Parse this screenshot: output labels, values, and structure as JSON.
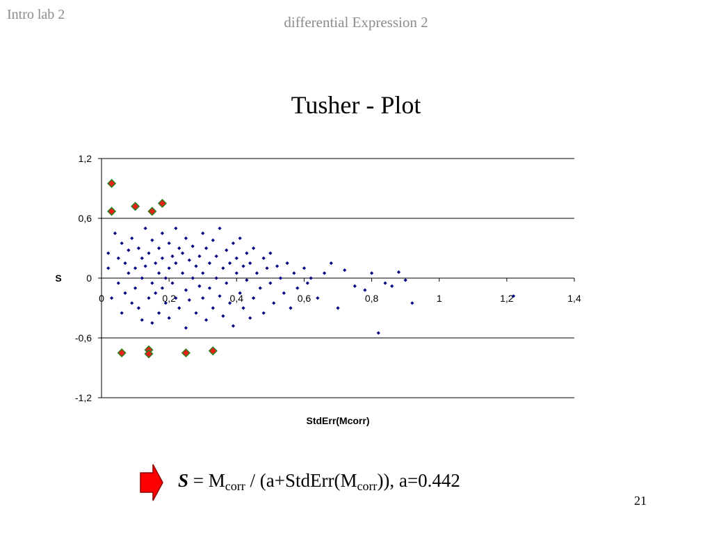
{
  "header": {
    "left": "Intro lab 2",
    "center": "differential Expression 2"
  },
  "slide": {
    "title": "Tusher - Plot",
    "page_number": "21"
  },
  "formula": {
    "symbol": "S",
    "eq": " = M",
    "sub1": "corr",
    "mid": " / (a+StdErr(M",
    "sub2": "corr",
    "end": ")), a=0.442"
  },
  "colors": {
    "point": "#000080",
    "highlight_fill": "#e8201a",
    "highlight_stroke": "#2e7d1e",
    "grid": "#000000",
    "arrow_fill": "#ff0000",
    "arrow_stroke": "#8b0000"
  },
  "icons": {
    "arrow": "right-arrow-icon"
  },
  "chart_data": {
    "type": "scatter",
    "xlabel": "StdErr(Mcorr)",
    "ylabel": "S",
    "xlim": [
      0,
      1.4
    ],
    "ylim": [
      -1.2,
      1.2
    ],
    "x_ticks": [
      "0",
      "0,2",
      "0,4",
      "0,6",
      "0,8",
      "1",
      "1,2",
      "1,4"
    ],
    "y_ticks": [
      "1,2",
      "0,6",
      "0",
      "-0,6",
      "-1,2"
    ],
    "x_tick_values": [
      0,
      0.2,
      0.4,
      0.6,
      0.8,
      1.0,
      1.2,
      1.4
    ],
    "y_tick_values": [
      1.2,
      0.6,
      0,
      -0.6,
      -1.2
    ],
    "grid": "horizontal",
    "legend": "none",
    "series": [
      {
        "marker": "small-diamond",
        "points": [
          [
            0.02,
            0.25
          ],
          [
            0.02,
            0.1
          ],
          [
            0.03,
            -0.2
          ],
          [
            0.04,
            0.45
          ],
          [
            0.05,
            0.2
          ],
          [
            0.05,
            -0.05
          ],
          [
            0.06,
            0.35
          ],
          [
            0.06,
            -0.35
          ],
          [
            0.07,
            0.15
          ],
          [
            0.07,
            -0.15
          ],
          [
            0.08,
            0.05
          ],
          [
            0.08,
            0.28
          ],
          [
            0.09,
            -0.25
          ],
          [
            0.09,
            0.4
          ],
          [
            0.1,
            0.1
          ],
          [
            0.1,
            -0.1
          ],
          [
            0.11,
            0.3
          ],
          [
            0.11,
            -0.3
          ],
          [
            0.12,
            0.2
          ],
          [
            0.12,
            0.0
          ],
          [
            0.12,
            -0.42
          ],
          [
            0.13,
            0.5
          ],
          [
            0.13,
            0.12
          ],
          [
            0.14,
            -0.2
          ],
          [
            0.14,
            0.25
          ],
          [
            0.15,
            -0.05
          ],
          [
            0.15,
            0.38
          ],
          [
            0.15,
            -0.45
          ],
          [
            0.16,
            0.15
          ],
          [
            0.16,
            -0.15
          ],
          [
            0.17,
            0.05
          ],
          [
            0.17,
            0.3
          ],
          [
            0.17,
            -0.35
          ],
          [
            0.18,
            0.2
          ],
          [
            0.18,
            -0.1
          ],
          [
            0.18,
            0.45
          ],
          [
            0.19,
            0.0
          ],
          [
            0.19,
            -0.25
          ],
          [
            0.2,
            0.1
          ],
          [
            0.2,
            0.35
          ],
          [
            0.2,
            -0.4
          ],
          [
            0.21,
            0.22
          ],
          [
            0.21,
            -0.05
          ],
          [
            0.22,
            0.15
          ],
          [
            0.22,
            -0.2
          ],
          [
            0.22,
            0.5
          ],
          [
            0.23,
            0.3
          ],
          [
            0.23,
            -0.3
          ],
          [
            0.24,
            0.05
          ],
          [
            0.24,
            0.25
          ],
          [
            0.25,
            -0.12
          ],
          [
            0.25,
            0.4
          ],
          [
            0.25,
            -0.5
          ],
          [
            0.26,
            0.18
          ],
          [
            0.26,
            -0.22
          ],
          [
            0.27,
            0.0
          ],
          [
            0.27,
            0.32
          ],
          [
            0.28,
            -0.35
          ],
          [
            0.28,
            0.12
          ],
          [
            0.29,
            0.22
          ],
          [
            0.29,
            -0.08
          ],
          [
            0.3,
            0.45
          ],
          [
            0.3,
            -0.2
          ],
          [
            0.3,
            0.05
          ],
          [
            0.31,
            0.3
          ],
          [
            0.31,
            -0.42
          ],
          [
            0.32,
            0.15
          ],
          [
            0.32,
            -0.1
          ],
          [
            0.33,
            0.38
          ],
          [
            0.33,
            -0.3
          ],
          [
            0.34,
            0.0
          ],
          [
            0.34,
            0.22
          ],
          [
            0.35,
            -0.18
          ],
          [
            0.35,
            0.5
          ],
          [
            0.36,
            0.1
          ],
          [
            0.36,
            -0.38
          ],
          [
            0.37,
            0.28
          ],
          [
            0.37,
            -0.05
          ],
          [
            0.38,
            0.15
          ],
          [
            0.38,
            -0.25
          ],
          [
            0.39,
            0.35
          ],
          [
            0.39,
            -0.48
          ],
          [
            0.4,
            0.05
          ],
          [
            0.4,
            0.2
          ],
          [
            0.41,
            -0.15
          ],
          [
            0.41,
            0.4
          ],
          [
            0.42,
            -0.3
          ],
          [
            0.42,
            0.12
          ],
          [
            0.43,
            0.25
          ],
          [
            0.43,
            -0.02
          ],
          [
            0.44,
            -0.4
          ],
          [
            0.44,
            0.15
          ],
          [
            0.45,
            0.3
          ],
          [
            0.45,
            -0.2
          ],
          [
            0.46,
            0.05
          ],
          [
            0.47,
            -0.1
          ],
          [
            0.48,
            0.2
          ],
          [
            0.48,
            -0.35
          ],
          [
            0.49,
            0.1
          ],
          [
            0.5,
            -0.05
          ],
          [
            0.5,
            0.25
          ],
          [
            0.51,
            -0.25
          ],
          [
            0.52,
            0.12
          ],
          [
            0.53,
            0.0
          ],
          [
            0.54,
            -0.15
          ],
          [
            0.55,
            0.15
          ],
          [
            0.56,
            -0.3
          ],
          [
            0.57,
            0.05
          ],
          [
            0.58,
            -0.1
          ],
          [
            0.6,
            0.1
          ],
          [
            0.61,
            -0.05
          ],
          [
            0.62,
            0.0
          ],
          [
            0.64,
            -0.2
          ],
          [
            0.66,
            0.05
          ],
          [
            0.68,
            0.15
          ],
          [
            0.7,
            -0.3
          ],
          [
            0.72,
            0.08
          ],
          [
            0.75,
            -0.08
          ],
          [
            0.78,
            -0.12
          ],
          [
            0.8,
            0.05
          ],
          [
            0.82,
            -0.55
          ],
          [
            0.84,
            -0.05
          ],
          [
            0.86,
            -0.08
          ],
          [
            0.88,
            0.06
          ],
          [
            0.9,
            -0.02
          ],
          [
            0.92,
            -0.25
          ],
          [
            1.22,
            -0.18
          ]
        ]
      },
      {
        "marker": "large-diamond",
        "points": [
          [
            0.03,
            0.95
          ],
          [
            0.03,
            0.67
          ],
          [
            0.1,
            0.72
          ],
          [
            0.15,
            0.67
          ],
          [
            0.18,
            0.75
          ],
          [
            0.06,
            -0.75
          ],
          [
            0.14,
            -0.72
          ],
          [
            0.14,
            -0.76
          ],
          [
            0.25,
            -0.75
          ],
          [
            0.33,
            -0.73
          ]
        ]
      }
    ]
  }
}
